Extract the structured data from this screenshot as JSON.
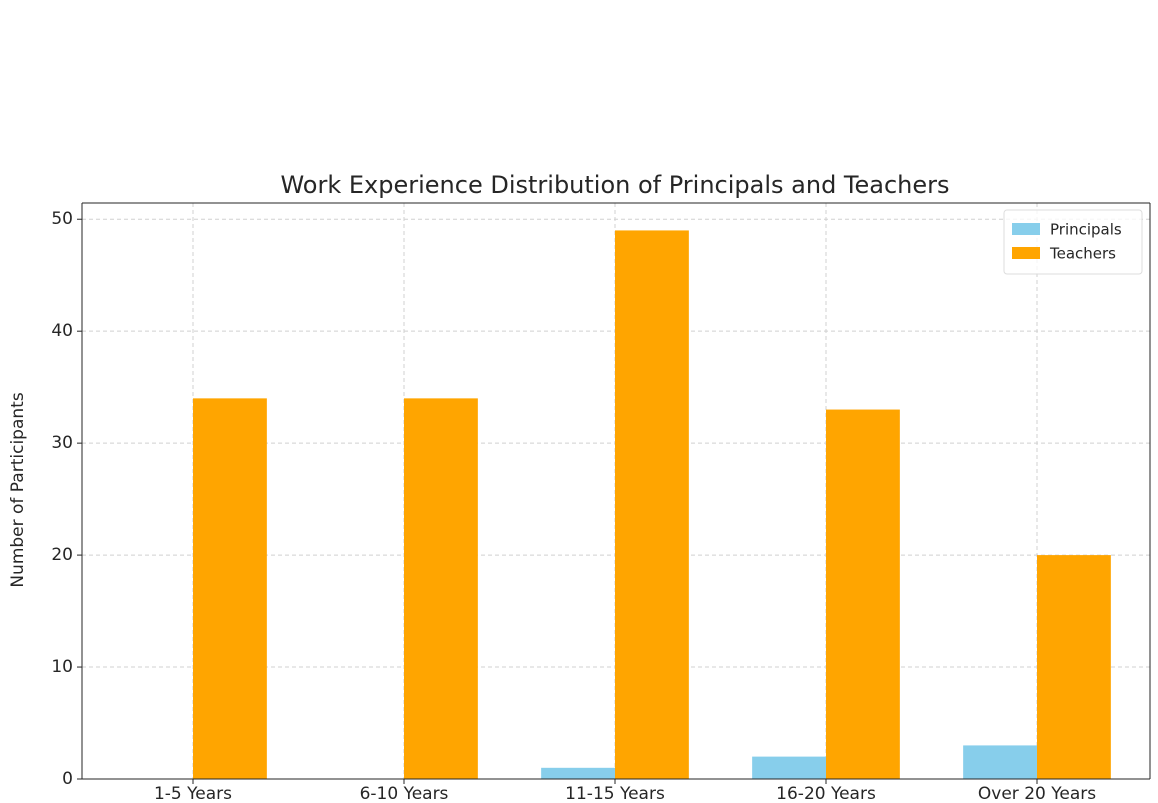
{
  "chart_data": {
    "type": "bar",
    "title": "Work Experience Distribution of Principals and Teachers",
    "ylabel": "Number of Participants",
    "categories": [
      "1-5 Years",
      "6-10 Years",
      "11-15 Years",
      "16-20 Years",
      "Over 20 Years"
    ],
    "series": [
      {
        "name": "Principals",
        "color": "#87ceeb",
        "values": [
          0,
          0,
          1,
          2,
          3
        ]
      },
      {
        "name": "Teachers",
        "color": "#ffa500",
        "values": [
          34,
          34,
          49,
          33,
          20
        ]
      }
    ],
    "ylim": [
      0,
      51.45
    ],
    "yticks": [
      0,
      10,
      20,
      30,
      40,
      50
    ],
    "grid": true,
    "legend": "upper right"
  }
}
